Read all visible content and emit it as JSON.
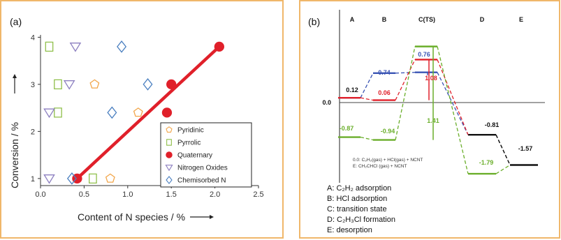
{
  "chart_data": [
    {
      "type": "scatter",
      "panel_label": "(a)",
      "xlabel": "Content of N species / %",
      "ylabel": "Conversion / %",
      "xlim": [
        0.0,
        2.5
      ],
      "ylim": [
        0.85,
        4.05
      ],
      "xticks": [
        "0.0",
        "0.5",
        "1.0",
        "1.5",
        "2.0",
        "2.5"
      ],
      "yticks": [
        "1",
        "2",
        "3",
        "4"
      ],
      "legend_position": "bottom-right",
      "series": [
        {
          "name": "Pyridinic",
          "marker": "pentagon",
          "color": "#f2a64a",
          "points": [
            [
              0.62,
              3.0
            ],
            [
              1.12,
              2.4
            ],
            [
              0.8,
              1.0
            ]
          ]
        },
        {
          "name": "Pyrrolic",
          "marker": "square",
          "color": "#8fbf4a",
          "points": [
            [
              0.1,
              3.8
            ],
            [
              0.2,
              3.0
            ],
            [
              0.2,
              2.4
            ],
            [
              0.6,
              1.0
            ]
          ]
        },
        {
          "name": "Quaternary",
          "marker": "circle",
          "color": "#e0202a",
          "points": [
            [
              2.05,
              3.8
            ],
            [
              1.5,
              3.0
            ],
            [
              1.45,
              2.4
            ],
            [
              0.42,
              1.0
            ]
          ]
        },
        {
          "name": "Nitrogen Oxides",
          "marker": "triangle-down",
          "color": "#8c7fc0",
          "points": [
            [
              0.4,
              3.8
            ],
            [
              0.33,
              3.0
            ],
            [
              0.1,
              2.4
            ],
            [
              0.1,
              1.0
            ]
          ]
        },
        {
          "name": "Chemisorbed N",
          "marker": "diamond",
          "color": "#4a7fc0",
          "points": [
            [
              0.93,
              3.8
            ],
            [
              1.23,
              3.0
            ],
            [
              0.82,
              2.4
            ],
            [
              0.36,
              1.0
            ]
          ]
        }
      ],
      "fit_line": {
        "color": "#e0202a",
        "x": [
          0.42,
          2.05
        ],
        "y": [
          1.0,
          3.8
        ]
      }
    },
    {
      "type": "line",
      "panel_label": "(b)",
      "subtype": "energy-profile",
      "states": [
        "A",
        "B",
        "C(TS)",
        "D",
        "E"
      ],
      "zero_label": "0.0",
      "series": [
        {
          "name": "",
          "color": "#3a54b4",
          "levels": [
            0.12,
            0.74,
            0.76
          ]
        },
        {
          "name": "",
          "color": "#e0202a",
          "levels": [
            0.12,
            0.06,
            1.08
          ]
        },
        {
          "name": "",
          "color": "#6aae2a",
          "levels": [
            -0.87,
            -0.94,
            1.41
          ]
        },
        {
          "name": "",
          "color": "#111111",
          "levels": [
            null,
            null,
            null,
            -0.81,
            -1.57
          ]
        },
        {
          "name": "",
          "color": "#6aae2a",
          "levels": [
            null,
            null,
            null,
            -1.79
          ]
        }
      ],
      "energy_labels": [
        {
          "text": "0.12",
          "color": "#111111"
        },
        {
          "text": "0.74",
          "color": "#3a54b4"
        },
        {
          "text": "0.76",
          "color": "#3a54b4"
        },
        {
          "text": "0.06",
          "color": "#e0202a"
        },
        {
          "text": "1.08",
          "color": "#e0202a"
        },
        {
          "text": "-0.87",
          "color": "#6aae2a"
        },
        {
          "text": "-0.94",
          "color": "#6aae2a"
        },
        {
          "text": "1.41",
          "color": "#6aae2a"
        },
        {
          "text": "-0.81",
          "color": "#111111"
        },
        {
          "text": "-1.57",
          "color": "#111111"
        },
        {
          "text": "-1.79",
          "color": "#6aae2a"
        }
      ],
      "notes": [
        "0.0: C₂H₂(gas) + HCl(gas) + NCNT",
        "E: CH₂CHCl (gas) + NCNT"
      ],
      "descriptions": [
        "A: C₂H₂ adsorption",
        "B: HCl adsorption",
        "C: transition state",
        "D: C₂H₃Cl formation",
        "E: desorption"
      ]
    }
  ]
}
